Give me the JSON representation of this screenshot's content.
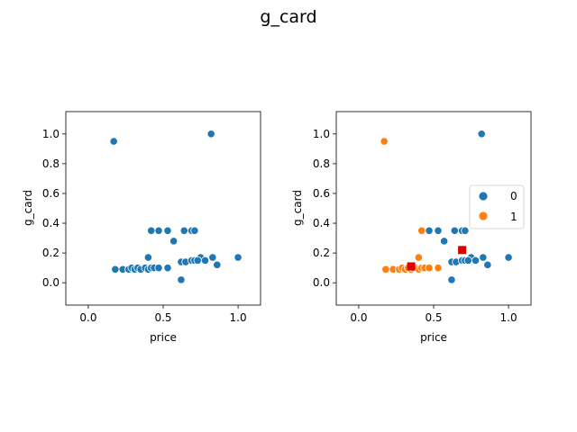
{
  "figure": {
    "title": "g_card"
  },
  "chart_data": [
    {
      "type": "scatter",
      "title": "",
      "xlabel": "price",
      "ylabel": "g_card",
      "xlim": [
        -0.15,
        1.15
      ],
      "ylim": [
        -0.15,
        1.15
      ],
      "xticks": [
        "0.0",
        "0.5",
        "1.0"
      ],
      "yticks": [
        "0.0",
        "0.2",
        "0.4",
        "0.6",
        "0.8",
        "1.0"
      ],
      "grid": false,
      "legend": null,
      "series": [
        {
          "color": "#1f77b4",
          "points": [
            [
              0.17,
              0.95
            ],
            [
              0.82,
              1.0
            ],
            [
              0.42,
              0.35
            ],
            [
              0.47,
              0.35
            ],
            [
              0.53,
              0.35
            ],
            [
              0.64,
              0.35
            ],
            [
              0.69,
              0.35
            ],
            [
              0.71,
              0.35
            ],
            [
              0.57,
              0.28
            ],
            [
              0.4,
              0.17
            ],
            [
              0.75,
              0.17
            ],
            [
              0.83,
              0.17
            ],
            [
              1.0,
              0.17
            ],
            [
              0.62,
              0.14
            ],
            [
              0.65,
              0.14
            ],
            [
              0.69,
              0.15
            ],
            [
              0.71,
              0.15
            ],
            [
              0.73,
              0.15
            ],
            [
              0.78,
              0.15
            ],
            [
              0.86,
              0.12
            ],
            [
              0.18,
              0.09
            ],
            [
              0.23,
              0.09
            ],
            [
              0.27,
              0.09
            ],
            [
              0.29,
              0.1
            ],
            [
              0.31,
              0.09
            ],
            [
              0.33,
              0.1
            ],
            [
              0.35,
              0.09
            ],
            [
              0.38,
              0.1
            ],
            [
              0.4,
              0.09
            ],
            [
              0.42,
              0.1
            ],
            [
              0.44,
              0.1
            ],
            [
              0.47,
              0.1
            ],
            [
              0.53,
              0.1
            ],
            [
              0.62,
              0.02
            ]
          ]
        }
      ]
    },
    {
      "type": "scatter",
      "title": "",
      "xlabel": "price",
      "ylabel": "g_card",
      "xlim": [
        -0.15,
        1.15
      ],
      "ylim": [
        -0.15,
        1.15
      ],
      "xticks": [
        "0.0",
        "0.5",
        "1.0"
      ],
      "yticks": [
        "0.0",
        "0.2",
        "0.4",
        "0.6",
        "0.8",
        "1.0"
      ],
      "grid": false,
      "legend": {
        "placement": "right",
        "entries": [
          "0",
          "1"
        ]
      },
      "series": [
        {
          "name": "0",
          "color": "#1f77b4",
          "points": [
            [
              0.82,
              1.0
            ],
            [
              0.47,
              0.35
            ],
            [
              0.53,
              0.35
            ],
            [
              0.64,
              0.35
            ],
            [
              0.69,
              0.35
            ],
            [
              0.71,
              0.35
            ],
            [
              0.57,
              0.28
            ],
            [
              0.75,
              0.17
            ],
            [
              0.83,
              0.17
            ],
            [
              1.0,
              0.17
            ],
            [
              0.62,
              0.14
            ],
            [
              0.65,
              0.14
            ],
            [
              0.69,
              0.15
            ],
            [
              0.71,
              0.15
            ],
            [
              0.73,
              0.15
            ],
            [
              0.78,
              0.15
            ],
            [
              0.86,
              0.12
            ],
            [
              0.62,
              0.02
            ]
          ]
        },
        {
          "name": "1",
          "color": "#ff7f0e",
          "points": [
            [
              0.17,
              0.95
            ],
            [
              0.42,
              0.35
            ],
            [
              0.4,
              0.17
            ],
            [
              0.18,
              0.09
            ],
            [
              0.23,
              0.09
            ],
            [
              0.27,
              0.09
            ],
            [
              0.29,
              0.1
            ],
            [
              0.31,
              0.09
            ],
            [
              0.33,
              0.1
            ],
            [
              0.35,
              0.09
            ],
            [
              0.38,
              0.1
            ],
            [
              0.4,
              0.09
            ],
            [
              0.42,
              0.1
            ],
            [
              0.44,
              0.1
            ],
            [
              0.47,
              0.1
            ],
            [
              0.53,
              0.1
            ],
            [
              0.36,
              0.1
            ]
          ]
        }
      ],
      "centroids": {
        "color": "#dd0000",
        "marker": "square",
        "points": [
          [
            0.35,
            0.11
          ],
          [
            0.69,
            0.22
          ]
        ]
      }
    }
  ]
}
